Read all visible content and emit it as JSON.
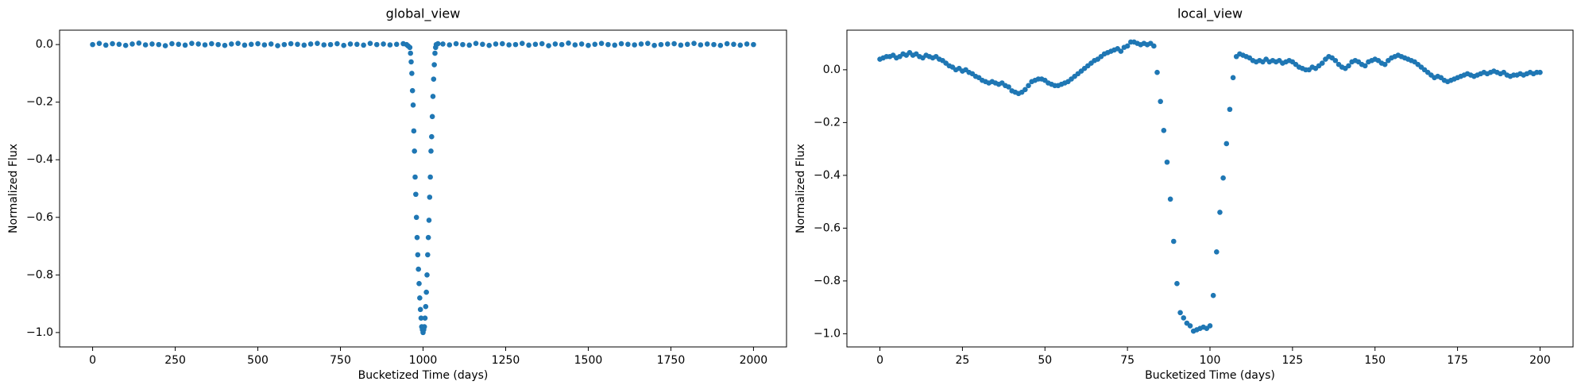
{
  "chart_data": [
    {
      "type": "scatter",
      "title": "global_view",
      "x_label": "Bucketized Time (days)",
      "y_label": "Normalized Flux",
      "color": "#1f77b4",
      "x": [
        0,
        20,
        40,
        60,
        80,
        100,
        120,
        140,
        160,
        180,
        200,
        220,
        240,
        260,
        280,
        300,
        320,
        340,
        360,
        380,
        400,
        420,
        440,
        460,
        480,
        500,
        520,
        540,
        560,
        580,
        600,
        620,
        640,
        660,
        680,
        700,
        720,
        740,
        760,
        780,
        800,
        820,
        840,
        860,
        880,
        900,
        920,
        940,
        950,
        955,
        960,
        962,
        964,
        966,
        968,
        970,
        972,
        974,
        976,
        978,
        980,
        982,
        984,
        986,
        988,
        990,
        992,
        994,
        996,
        998,
        1000,
        1002,
        1004,
        1006,
        1008,
        1010,
        1012,
        1014,
        1016,
        1018,
        1020,
        1022,
        1024,
        1026,
        1028,
        1030,
        1032,
        1034,
        1036,
        1038,
        1040,
        1045,
        1060,
        1080,
        1100,
        1120,
        1140,
        1160,
        1180,
        1200,
        1220,
        1240,
        1260,
        1280,
        1300,
        1320,
        1340,
        1360,
        1380,
        1400,
        1420,
        1440,
        1460,
        1480,
        1500,
        1520,
        1540,
        1560,
        1580,
        1600,
        1620,
        1640,
        1660,
        1680,
        1700,
        1720,
        1740,
        1760,
        1780,
        1800,
        1820,
        1840,
        1860,
        1880,
        1900,
        1920,
        1940,
        1960,
        1980,
        2000
      ],
      "values": [
        0.0,
        0.004,
        -0.002,
        0.003,
        0.001,
        -0.003,
        0.002,
        0.005,
        -0.001,
        0.002,
        0.0,
        -0.004,
        0.003,
        0.001,
        -0.002,
        0.004,
        0.002,
        -0.001,
        0.003,
        0.0,
        -0.003,
        0.002,
        0.004,
        -0.002,
        0.001,
        0.003,
        -0.001,
        0.002,
        -0.004,
        0.0,
        0.003,
        0.001,
        -0.002,
        0.002,
        0.004,
        -0.001,
        0.0,
        0.003,
        -0.003,
        0.002,
        0.001,
        -0.002,
        0.004,
        0.0,
        0.002,
        -0.001,
        0.001,
        0.003,
        0.0,
        -0.005,
        -0.01,
        -0.03,
        -0.06,
        -0.1,
        -0.16,
        -0.21,
        -0.3,
        -0.37,
        -0.46,
        -0.52,
        -0.6,
        -0.67,
        -0.73,
        -0.78,
        -0.83,
        -0.88,
        -0.92,
        -0.95,
        -0.98,
        -0.99,
        -1.0,
        -0.99,
        -0.98,
        -0.95,
        -0.91,
        -0.86,
        -0.8,
        -0.73,
        -0.67,
        -0.61,
        -0.53,
        -0.46,
        -0.37,
        -0.32,
        -0.25,
        -0.18,
        -0.12,
        -0.07,
        -0.03,
        -0.01,
        0.0,
        0.003,
        0.002,
        -0.001,
        0.003,
        0.0,
        -0.002,
        0.004,
        0.001,
        -0.003,
        0.002,
        0.003,
        -0.001,
        0.0,
        0.004,
        -0.002,
        0.001,
        0.003,
        -0.004,
        0.002,
        0.0,
        0.005,
        -0.001,
        0.002,
        -0.003,
        0.001,
        0.004,
        0.0,
        -0.002,
        0.003,
        0.001,
        -0.001,
        0.002,
        0.004,
        -0.003,
        0.0,
        0.002,
        0.003,
        -0.002,
        0.001,
        0.004,
        -0.001,
        0.002,
        0.0,
        -0.003,
        0.003,
        0.001,
        -0.002,
        0.002,
        0.0
      ],
      "xlim": [
        -100,
        2100
      ],
      "xticks": [
        0,
        250,
        500,
        750,
        1000,
        1250,
        1500,
        1750,
        2000
      ],
      "ylim": [
        -1.05,
        0.05
      ],
      "yticks": [
        {
          "value": 0,
          "label": "0.0"
        },
        {
          "value": -0.2,
          "label": "−0.2"
        },
        {
          "value": -0.4,
          "label": "−0.4"
        },
        {
          "value": -0.6,
          "label": "−0.6"
        },
        {
          "value": -0.8,
          "label": "−0.8"
        },
        {
          "value": -1.0,
          "label": "−1.0"
        }
      ]
    },
    {
      "type": "scatter",
      "title": "local_view",
      "x_label": "Bucketized Time (days)",
      "y_label": "Normalized Flux",
      "color": "#1f77b4",
      "x": [
        0,
        1,
        2,
        3,
        4,
        5,
        6,
        7,
        8,
        9,
        10,
        11,
        12,
        13,
        14,
        15,
        16,
        17,
        18,
        19,
        20,
        21,
        22,
        23,
        24,
        25,
        26,
        27,
        28,
        29,
        30,
        31,
        32,
        33,
        34,
        35,
        36,
        37,
        38,
        39,
        40,
        41,
        42,
        43,
        44,
        45,
        46,
        47,
        48,
        49,
        50,
        51,
        52,
        53,
        54,
        55,
        56,
        57,
        58,
        59,
        60,
        61,
        62,
        63,
        64,
        65,
        66,
        67,
        68,
        69,
        70,
        71,
        72,
        73,
        74,
        75,
        76,
        77,
        78,
        79,
        80,
        81,
        82,
        83,
        84,
        85,
        86,
        87,
        88,
        89,
        90,
        91,
        92,
        93,
        94,
        95,
        96,
        97,
        98,
        99,
        100,
        101,
        102,
        103,
        104,
        105,
        106,
        107,
        108,
        109,
        110,
        111,
        112,
        113,
        114,
        115,
        116,
        117,
        118,
        119,
        120,
        121,
        122,
        123,
        124,
        125,
        126,
        127,
        128,
        129,
        130,
        131,
        132,
        133,
        134,
        135,
        136,
        137,
        138,
        139,
        140,
        141,
        142,
        143,
        144,
        145,
        146,
        147,
        148,
        149,
        150,
        151,
        152,
        153,
        154,
        155,
        156,
        157,
        158,
        159,
        160,
        161,
        162,
        163,
        164,
        165,
        166,
        167,
        168,
        169,
        170,
        171,
        172,
        173,
        174,
        175,
        176,
        177,
        178,
        179,
        180,
        181,
        182,
        183,
        184,
        185,
        186,
        187,
        188,
        189,
        190,
        191,
        192,
        193,
        194,
        195,
        196,
        197,
        198,
        199,
        200
      ],
      "values": [
        0.04,
        0.045,
        0.05,
        0.05,
        0.055,
        0.045,
        0.05,
        0.06,
        0.055,
        0.065,
        0.055,
        0.06,
        0.05,
        0.045,
        0.055,
        0.05,
        0.045,
        0.05,
        0.04,
        0.035,
        0.025,
        0.015,
        0.01,
        0.0,
        0.005,
        -0.005,
        0.0,
        -0.01,
        -0.015,
        -0.025,
        -0.03,
        -0.04,
        -0.045,
        -0.05,
        -0.045,
        -0.05,
        -0.055,
        -0.05,
        -0.06,
        -0.065,
        -0.08,
        -0.085,
        -0.09,
        -0.085,
        -0.075,
        -0.06,
        -0.045,
        -0.04,
        -0.035,
        -0.035,
        -0.04,
        -0.05,
        -0.055,
        -0.06,
        -0.06,
        -0.055,
        -0.05,
        -0.045,
        -0.035,
        -0.025,
        -0.015,
        -0.005,
        0.005,
        0.015,
        0.025,
        0.035,
        0.04,
        0.05,
        0.06,
        0.065,
        0.07,
        0.075,
        0.08,
        0.07,
        0.085,
        0.09,
        0.105,
        0.105,
        0.1,
        0.095,
        0.1,
        0.095,
        0.1,
        0.09,
        -0.01,
        -0.12,
        -0.23,
        -0.35,
        -0.49,
        -0.65,
        -0.81,
        -0.92,
        -0.94,
        -0.96,
        -0.97,
        -0.99,
        -0.985,
        -0.98,
        -0.975,
        -0.98,
        -0.97,
        -0.855,
        -0.69,
        -0.54,
        -0.41,
        -0.28,
        -0.15,
        -0.03,
        0.05,
        0.06,
        0.055,
        0.05,
        0.045,
        0.035,
        0.03,
        0.035,
        0.03,
        0.04,
        0.03,
        0.035,
        0.03,
        0.035,
        0.025,
        0.03,
        0.035,
        0.03,
        0.02,
        0.01,
        0.005,
        0.0,
        0.0,
        0.01,
        0.005,
        0.015,
        0.025,
        0.04,
        0.05,
        0.045,
        0.035,
        0.02,
        0.01,
        0.005,
        0.015,
        0.03,
        0.035,
        0.03,
        0.02,
        0.015,
        0.03,
        0.035,
        0.04,
        0.035,
        0.025,
        0.02,
        0.035,
        0.045,
        0.05,
        0.055,
        0.05,
        0.045,
        0.04,
        0.035,
        0.03,
        0.02,
        0.01,
        0.0,
        -0.01,
        -0.02,
        -0.03,
        -0.025,
        -0.03,
        -0.04,
        -0.045,
        -0.04,
        -0.035,
        -0.03,
        -0.025,
        -0.02,
        -0.015,
        -0.02,
        -0.025,
        -0.02,
        -0.015,
        -0.01,
        -0.015,
        -0.01,
        -0.005,
        -0.01,
        -0.015,
        -0.01,
        -0.02,
        -0.025,
        -0.02,
        -0.02,
        -0.015,
        -0.02,
        -0.015,
        -0.01,
        -0.015,
        -0.01,
        -0.01
      ],
      "xlim": [
        -10,
        210
      ],
      "xticks": [
        0,
        25,
        50,
        75,
        100,
        125,
        150,
        175,
        200
      ],
      "ylim": [
        -1.05,
        0.15
      ],
      "yticks": [
        {
          "value": 0,
          "label": "0.0"
        },
        {
          "value": -0.2,
          "label": "−0.2"
        },
        {
          "value": -0.4,
          "label": "−0.4"
        },
        {
          "value": -0.6,
          "label": "−0.6"
        },
        {
          "value": -0.8,
          "label": "−0.8"
        },
        {
          "value": -1.0,
          "label": "−1.0"
        }
      ]
    }
  ]
}
